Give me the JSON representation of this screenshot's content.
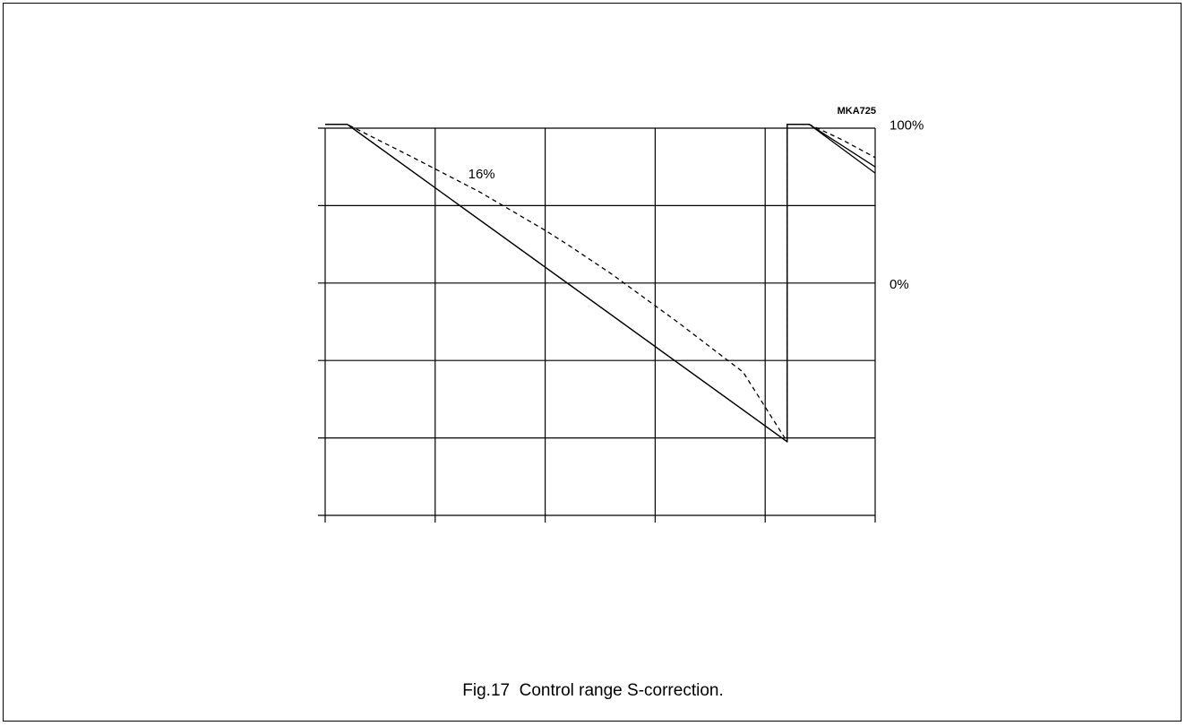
{
  "figure": {
    "code": "MKA725",
    "caption": "Fig.17  Control range S-correction."
  },
  "chart_data": {
    "type": "line",
    "title": "",
    "xlabel": "",
    "ylabel": "",
    "grid": true,
    "x_divisions": 5,
    "y_divisions": 5,
    "xlim": [
      0,
      5
    ],
    "ylim": [
      0,
      5
    ],
    "reference_labels": [
      {
        "text": "100%",
        "y": 5.05
      },
      {
        "text": "0%",
        "y": 3.0
      }
    ],
    "annotations": [
      {
        "text": "16%",
        "x": 1.3,
        "y": 4.35
      }
    ],
    "series": [
      {
        "style": "solid",
        "x": [
          0,
          0.2,
          4.2,
          4.2,
          4.4,
          5.0
        ],
        "y": [
          5.05,
          5.05,
          0.95,
          5.05,
          5.05,
          4.5
        ]
      },
      {
        "style": "solid",
        "x": [
          0,
          0.2,
          4.2,
          4.2,
          4.4,
          5.0
        ],
        "y": [
          5.05,
          5.05,
          0.95,
          5.05,
          5.05,
          4.42
        ]
      },
      {
        "style": "dashed",
        "x": [
          0,
          0.2,
          0.8,
          1.4,
          2.0,
          2.2,
          2.6,
          3.2,
          3.8,
          4.2,
          4.2,
          4.4,
          4.7,
          5.0
        ],
        "y": [
          5.05,
          5.05,
          4.62,
          4.18,
          3.68,
          3.5,
          3.12,
          2.5,
          1.85,
          0.95,
          5.05,
          5.05,
          4.85,
          4.62
        ]
      }
    ]
  }
}
